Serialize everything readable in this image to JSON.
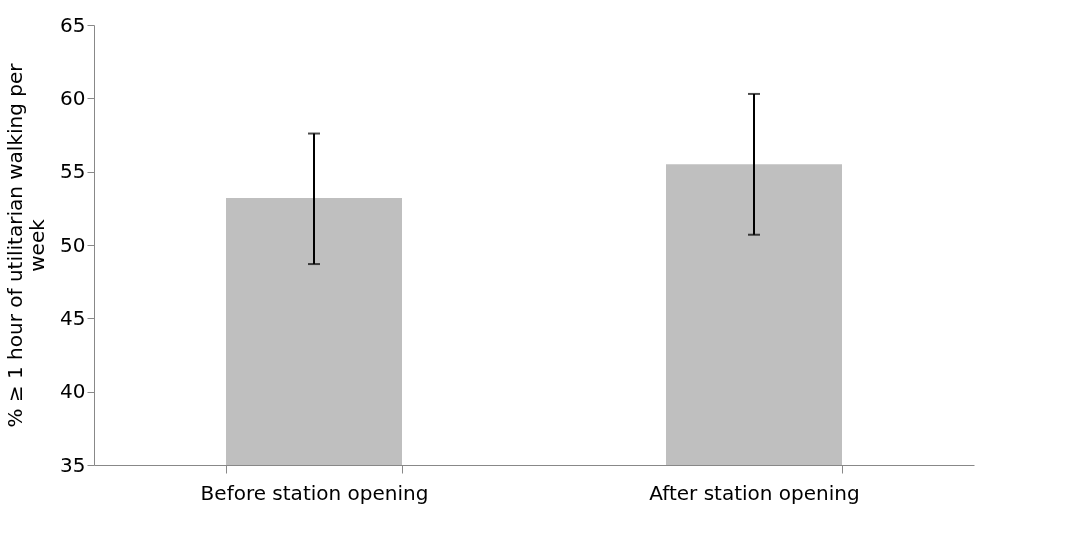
{
  "chart_data": {
    "type": "bar",
    "ylabel": "% ≥ 1 hour of utilitarian walking per week",
    "categories": [
      "Before station opening",
      "After station opening"
    ],
    "values": [
      53.2,
      55.5
    ],
    "errors": [
      [
        48.7,
        57.6
      ],
      [
        50.7,
        60.3
      ]
    ],
    "color": "#bfbfbf",
    "ylim": [
      35,
      65
    ],
    "yticks": [
      35,
      40,
      45,
      50,
      55,
      60,
      65
    ],
    "grid": false
  }
}
